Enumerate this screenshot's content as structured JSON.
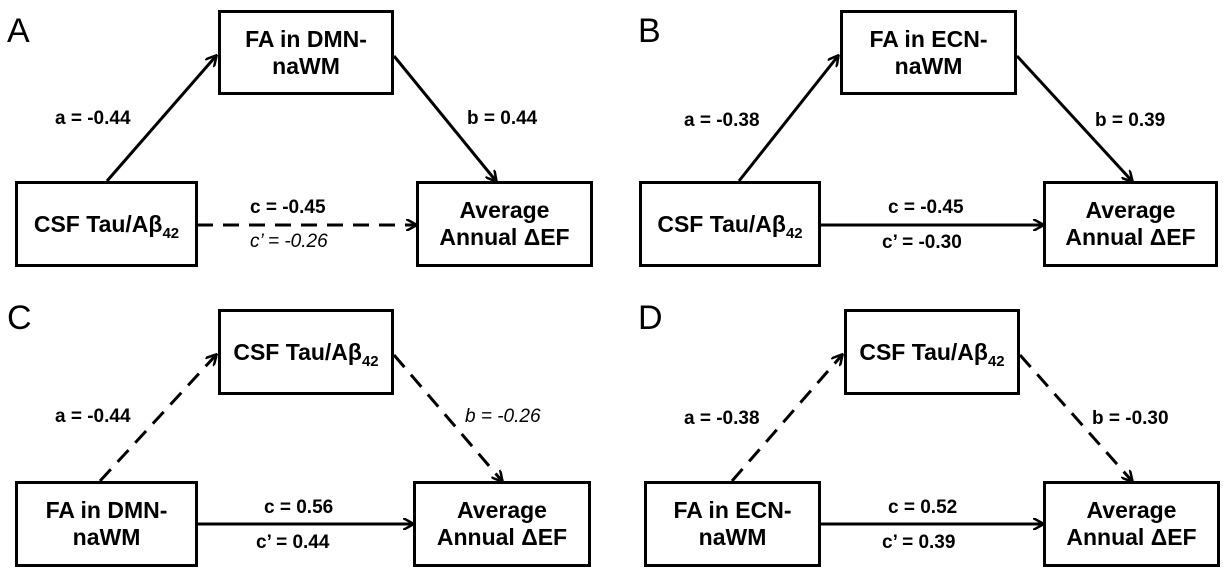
{
  "panels": [
    {
      "letter": "A",
      "mediator": {
        "line1": "FA in DMN-",
        "line2": "naWM"
      },
      "predictor": {
        "main": "CSF Tau/Aβ",
        "sub": "42"
      },
      "outcome": {
        "line1": "Average",
        "line2": "Annual ΔEF"
      },
      "path_a": "a = -0.44",
      "path_b": "b = 0.44",
      "path_c": "c = -0.45",
      "path_c_prime": "c’ = -0.26"
    },
    {
      "letter": "B",
      "mediator": {
        "line1": "FA in ECN-",
        "line2": "naWM"
      },
      "predictor": {
        "main": "CSF Tau/Aβ",
        "sub": "42"
      },
      "outcome": {
        "line1": "Average",
        "line2": "Annual ΔEF"
      },
      "path_a": "a = -0.38",
      "path_b": "b = 0.39",
      "path_c": "c = -0.45",
      "path_c_prime": "c’ = -0.30"
    },
    {
      "letter": "C",
      "mediator": {
        "main": "CSF Tau/Aβ",
        "sub": "42"
      },
      "predictor": {
        "line1": "FA in DMN-",
        "line2": "naWM"
      },
      "outcome": {
        "line1": "Average",
        "line2": "Annual ΔEF"
      },
      "path_a": "a = -0.44",
      "path_b": "b = -0.26",
      "path_c": "c = 0.56",
      "path_c_prime": "c’ = 0.44"
    },
    {
      "letter": "D",
      "mediator": {
        "main": "CSF Tau/Aβ",
        "sub": "42"
      },
      "predictor": {
        "line1": "FA in ECN-",
        "line2": "naWM"
      },
      "outcome": {
        "line1": "Average",
        "line2": "Annual ΔEF"
      },
      "path_a": "a = -0.38",
      "path_b": "b = -0.30",
      "path_c": "c = 0.52",
      "path_c_prime": "c’ = 0.39"
    }
  ]
}
